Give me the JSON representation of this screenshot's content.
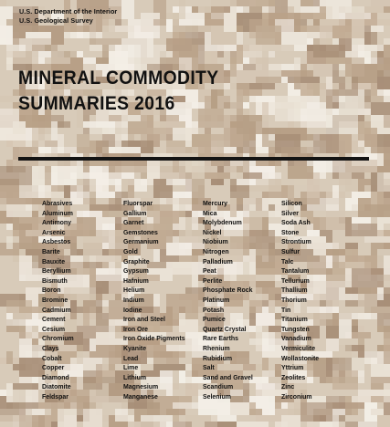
{
  "agency": {
    "department": "U.S. Department of the Interior",
    "survey": "U.S. Geological Survey"
  },
  "title": {
    "line1": "MINERAL COMMODITY",
    "line2": "SUMMARIES 2016"
  },
  "colors": {
    "background": "#d8cbb9",
    "text": "#111111",
    "rule": "#141414"
  },
  "commodities": [
    [
      "Abrasives",
      "Aluminum",
      "Antimony",
      "Arsenic",
      "Asbestos",
      "Barite",
      "Bauxite",
      "Beryllium",
      "Bismuth",
      "Boron",
      "Bromine",
      "Cadmium",
      "Cement",
      "Cesium",
      "Chromium",
      "Clays",
      "Cobalt",
      "Copper",
      "Diamond",
      "Diatomite",
      "Feldspar"
    ],
    [
      "Fluorspar",
      "Gallium",
      "Garnet",
      "Gemstones",
      "Germanium",
      "Gold",
      "Graphite",
      "Gypsum",
      "Hafnium",
      "Helium",
      "Indium",
      "Iodine",
      "Iron and Steel",
      "Iron Ore",
      "Iron Oxide Pigments",
      "Kyanite",
      "Lead",
      "Lime",
      "Lithium",
      "Magnesium",
      "Manganese"
    ],
    [
      "Mercury",
      "Mica",
      "Molybdenum",
      "Nickel",
      "Niobium",
      "Nitrogen",
      "Palladium",
      "Peat",
      "Perlite",
      "Phosphate Rock",
      "Platinum",
      "Potash",
      "Pumice",
      "Quartz Crystal",
      "Rare Earths",
      "Rhenium",
      "Rubidium",
      "Salt",
      "Sand and Gravel",
      "Scandium",
      "Selenium"
    ],
    [
      "Silicon",
      "Silver",
      "Soda Ash",
      "Stone",
      "Strontium",
      "Sulfur",
      "Talc",
      "Tantalum",
      "Tellurium",
      "Thallium",
      "Thorium",
      "Tin",
      "Titanium",
      "Tungsten",
      "Vanadium",
      "Vermiculite",
      "Wollastonite",
      "Yttrium",
      "Zeolites",
      "Zinc",
      "Zirconium"
    ]
  ]
}
